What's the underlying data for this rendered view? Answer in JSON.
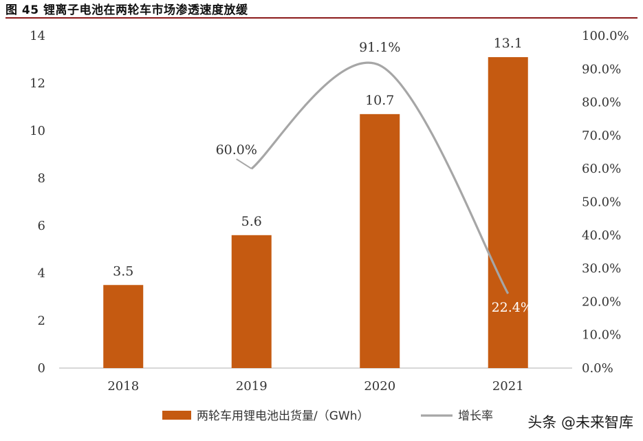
{
  "figure_title": "图 45 锂离子电池在两轮车市场渗透速度放缓",
  "watermark": "头条 @未来智库",
  "colors": {
    "bar": "#c55a11",
    "line": "#a6a6a6",
    "axis": "#bfbfbf",
    "title_rule": "#8b1a1a"
  },
  "chart_data": {
    "type": "bar",
    "title": "锂离子电池在两轮车市场渗透速度放缓",
    "categories": [
      "2018",
      "2019",
      "2020",
      "2021"
    ],
    "ylim": [
      0,
      14
    ],
    "y_ticks": [
      0,
      2,
      4,
      6,
      8,
      10,
      12,
      14
    ],
    "y2lim": [
      0,
      100
    ],
    "y2_ticks": [
      "0.0%",
      "10.0%",
      "20.0%",
      "30.0%",
      "40.0%",
      "50.0%",
      "60.0%",
      "70.0%",
      "80.0%",
      "90.0%",
      "100.0%"
    ],
    "series": [
      {
        "name": "两轮车用锂电池出货量/（GWh）",
        "type": "bar",
        "axis": "left",
        "values": [
          3.5,
          5.6,
          10.7,
          13.1
        ],
        "labels": [
          "3.5",
          "5.6",
          "10.7",
          "13.1"
        ]
      },
      {
        "name": "增长率",
        "type": "line",
        "axis": "right",
        "values": [
          null,
          60.0,
          91.1,
          22.4
        ],
        "labels": [
          "",
          "60.0%",
          "91.1%",
          "22.4%"
        ]
      }
    ],
    "legend": "bottom",
    "grid": false
  }
}
